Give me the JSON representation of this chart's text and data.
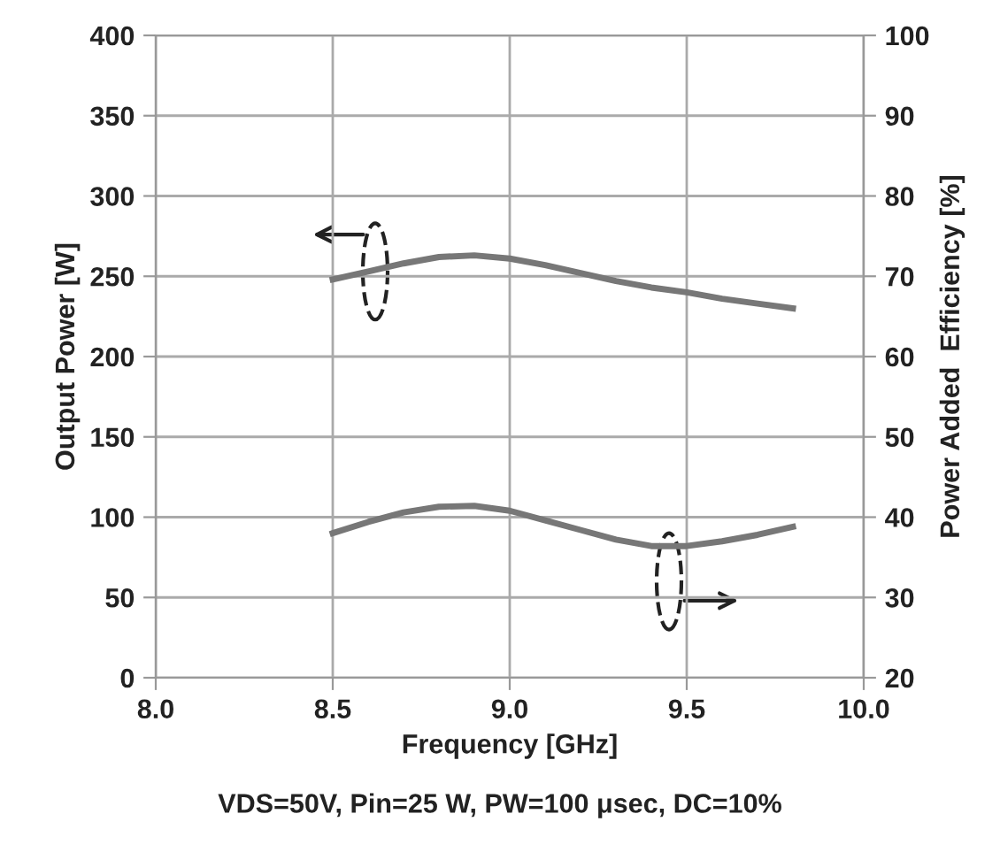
{
  "chart_data": {
    "type": "line",
    "xlabel": "Frequency [GHz]",
    "ylabel": "Output Power [W]",
    "y2label": "Power Added  Efficiency [%]",
    "series": [
      {
        "color": "#777777",
        "x": [
          8.5,
          8.6,
          8.7,
          8.8,
          8.9,
          9.0,
          9.1,
          9.2,
          9.3,
          9.4,
          9.5,
          9.6,
          9.7,
          9.8
        ],
        "values": [
          248,
          253,
          258,
          262,
          263,
          261,
          257,
          252,
          247,
          243,
          240,
          236,
          233,
          230
        ]
      },
      {
        "color": "#777777",
        "axis": "y2",
        "x": [
          8.5,
          8.6,
          8.7,
          8.8,
          8.9,
          9.0,
          9.1,
          9.2,
          9.3,
          9.4,
          9.5,
          9.6,
          9.7,
          9.8
        ],
        "values": [
          38.0,
          39.4,
          40.6,
          41.3,
          41.4,
          40.8,
          39.6,
          38.4,
          37.2,
          36.4,
          36.4,
          37.0,
          37.8,
          38.8
        ]
      }
    ],
    "xlim": [
      8.0,
      10.0
    ],
    "xticks": [
      {
        "value": 8.0,
        "label": "8.0"
      },
      {
        "value": 8.5,
        "label": "8.5"
      },
      {
        "value": 9.0,
        "label": "9.0"
      },
      {
        "value": 9.5,
        "label": "9.5"
      },
      {
        "value": 10.0,
        "label": "10.0"
      }
    ],
    "ylim": [
      0,
      400
    ],
    "yticks": [
      0,
      50,
      100,
      150,
      200,
      250,
      300,
      350,
      400
    ],
    "y2lim": [
      20,
      100
    ],
    "y2ticks": [
      20,
      30,
      40,
      50,
      60,
      70,
      80,
      90,
      100
    ],
    "grid": true,
    "line_style": "solid",
    "marker": "none",
    "annotations": [
      "VDS=50V, Pin=25 W, PW=100 μsec, DC=10%"
    ]
  }
}
